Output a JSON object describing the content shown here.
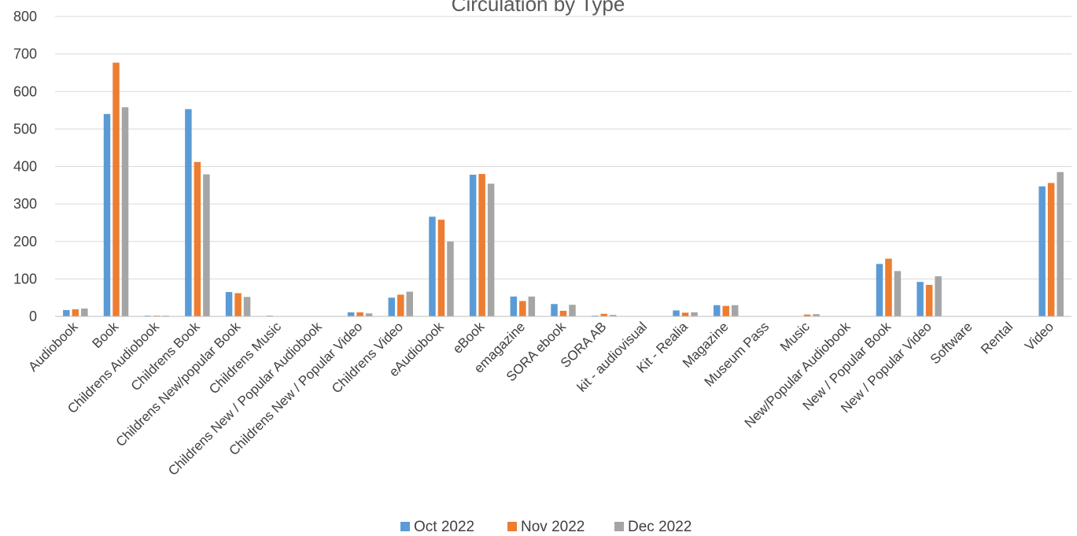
{
  "chart_data": {
    "type": "bar",
    "title": "Circulation by Type",
    "xlabel": "",
    "ylabel": "",
    "ylim": [
      0,
      800
    ],
    "yticks": [
      0,
      100,
      200,
      300,
      400,
      500,
      600,
      700,
      800
    ],
    "grid": true,
    "legend_position": "bottom",
    "categories": [
      "Audiobook",
      "Book",
      "Childrens Audiobook",
      "Childrens Book",
      "Childrens New/popular Book",
      "Childrens Music",
      "Childrens New / Popular Audiobook",
      "Childrens New / Popular Video",
      "Childrens Video",
      "eAudiobook",
      "eBook",
      "emagazine",
      "SORA ebook",
      "SORA AB",
      "kit - audiovisual",
      "Kit - Realia",
      "Magazine",
      "Museum Pass",
      "Music",
      "New/Popular Audiobook",
      "New / Popular Book",
      "New / Popular Video",
      "Software",
      "Rental",
      "Video"
    ],
    "series": [
      {
        "name": "Oct 2022",
        "color": "#5b9bd5",
        "values": [
          17,
          540,
          2,
          553,
          65,
          2,
          0,
          11,
          50,
          266,
          378,
          53,
          33,
          2,
          0,
          16,
          30,
          0,
          0,
          0,
          140,
          92,
          0,
          0,
          347
        ]
      },
      {
        "name": "Nov 2022",
        "color": "#ed7d31",
        "values": [
          19,
          677,
          2,
          412,
          62,
          0,
          0,
          11,
          58,
          258,
          380,
          41,
          15,
          7,
          0,
          10,
          28,
          0,
          5,
          0,
          154,
          84,
          0,
          0,
          356
        ]
      },
      {
        "name": "Dec 2022",
        "color": "#a5a5a5",
        "values": [
          21,
          558,
          2,
          379,
          52,
          0,
          0,
          8,
          66,
          200,
          354,
          53,
          31,
          4,
          0,
          11,
          30,
          0,
          6,
          0,
          121,
          107,
          0,
          0,
          385
        ]
      }
    ]
  }
}
